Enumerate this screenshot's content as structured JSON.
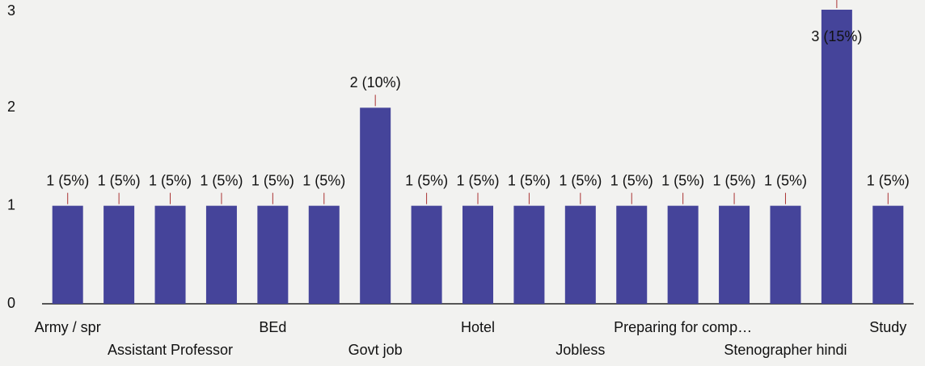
{
  "chart_data": {
    "type": "bar",
    "categories": [
      "Army / spr",
      null,
      "Assistant Professor",
      null,
      "BEd",
      null,
      "Govt job",
      null,
      "Hotel",
      null,
      "Jobless",
      null,
      "Preparing for comp…",
      null,
      "Stenographer hindi",
      null,
      "Study"
    ],
    "values": [
      1,
      1,
      1,
      1,
      1,
      1,
      2,
      1,
      1,
      1,
      1,
      1,
      1,
      1,
      1,
      3,
      1
    ],
    "value_labels": [
      "1 (5%)",
      "1 (5%)",
      "1 (5%)",
      "1 (5%)",
      "1 (5%)",
      "1 (5%)",
      "2 (10%)",
      "1 (5%)",
      "1 (5%)",
      "1 (5%)",
      "1 (5%)",
      "1 (5%)",
      "1 (5%)",
      "1 (5%)",
      "1 (5%)",
      "3 (15%)",
      "1 (5%)"
    ],
    "color": "#45449a",
    "ylim": [
      0,
      3
    ],
    "yticks": [
      0,
      1,
      2,
      3
    ]
  }
}
